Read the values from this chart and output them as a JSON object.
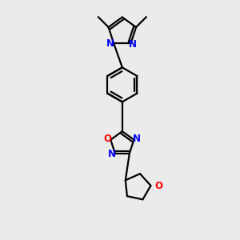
{
  "bg_color": "#ebebeb",
  "bond_color": "#000000",
  "N_color": "#0000ff",
  "O_color": "#ff0000",
  "line_width": 1.6,
  "font_size": 8.5,
  "fig_size": [
    3.0,
    3.0
  ],
  "dpi": 100,
  "xlim": [
    -1.2,
    1.2
  ],
  "ylim": [
    -2.6,
    2.6
  ]
}
